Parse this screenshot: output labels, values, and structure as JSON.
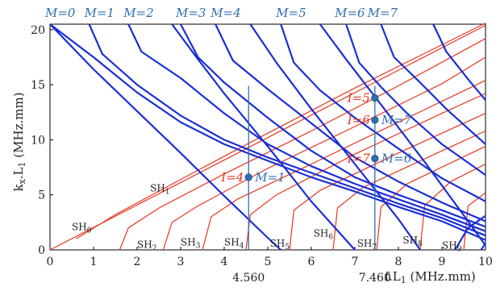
{
  "chart_data": {
    "type": "line",
    "xlabel": "f.L1 (MHz.mm)",
    "xlabel_main": "f.L",
    "xlabel_sub": "1",
    "xlabel_unit": " (MHz.mm)",
    "ylabel_k": "k",
    "ylabel_k_sub": "x",
    "ylabel_dot": ".L",
    "ylabel_L_sub": "1",
    "ylabel_unit": " (MHz.mm)",
    "xlim": [
      0,
      10
    ],
    "ylim": [
      0,
      20.5
    ],
    "xticks": [
      0,
      1,
      2,
      3,
      4,
      5,
      6,
      7,
      8,
      9,
      10
    ],
    "yticks": [
      0,
      5,
      10,
      15,
      20
    ],
    "extra_xtick_labels": [
      "4.560",
      "7.460"
    ],
    "vertical_lines": [
      4.56,
      7.46
    ],
    "colors": {
      "sh_modes": "#e8351f",
      "M_modes": "#1a2fd6",
      "markers": "#2f6fb0",
      "vlines": "#2f6fb0"
    },
    "M_labels": [
      "M=0",
      "M=1",
      "M=2",
      "M=3",
      "M=4",
      "M=5",
      "M=6",
      "M=7"
    ],
    "SH_labels": [
      {
        "name": "SH",
        "sub": "0"
      },
      {
        "name": "SH",
        "sub": "1"
      },
      {
        "name": "SH",
        "sub": "2"
      },
      {
        "name": "SH",
        "sub": "3"
      },
      {
        "name": "SH",
        "sub": "4"
      },
      {
        "name": "SH",
        "sub": "5"
      },
      {
        "name": "SH",
        "sub": "6"
      },
      {
        "name": "SH",
        "sub": "7"
      },
      {
        "name": "SH",
        "sub": "8"
      },
      {
        "name": "SH",
        "sub": "9"
      }
    ],
    "marked_points": [
      {
        "x": 4.56,
        "y": 6.6,
        "left_label": "I=4",
        "right_label": "M=1"
      },
      {
        "x": 7.46,
        "y": 13.8,
        "left_label": "I=5",
        "right_label": ""
      },
      {
        "x": 7.46,
        "y": 11.8,
        "left_label": "I=6",
        "right_label": "M=7"
      },
      {
        "x": 7.46,
        "y": 8.3,
        "left_label": "I=7",
        "right_label": "M=6"
      }
    ],
    "sh_series": [
      {
        "points": [
          [
            0,
            0
          ],
          [
            10,
            20.4
          ]
        ]
      },
      {
        "points": [
          [
            0.6,
            1
          ],
          [
            1.5,
            3.2
          ],
          [
            3,
            6.4
          ],
          [
            5,
            10.6
          ],
          [
            7,
            14.7
          ],
          [
            10,
            20.6
          ]
        ]
      },
      {
        "points": [
          [
            1.6,
            0
          ],
          [
            1.8,
            2
          ],
          [
            2.5,
            3.8
          ],
          [
            4,
            6.9
          ],
          [
            6,
            10.8
          ],
          [
            8,
            14.9
          ],
          [
            10,
            19.2
          ]
        ]
      },
      {
        "points": [
          [
            2.6,
            0
          ],
          [
            2.8,
            2.5
          ],
          [
            3.4,
            4
          ],
          [
            5,
            7.4
          ],
          [
            7,
            11.2
          ],
          [
            9,
            15.1
          ],
          [
            10,
            17.5
          ]
        ]
      },
      {
        "points": [
          [
            3.5,
            0
          ],
          [
            3.7,
            3
          ],
          [
            4.3,
            4.6
          ],
          [
            6,
            7.8
          ],
          [
            8,
            11.6
          ],
          [
            10,
            15.4
          ]
        ]
      },
      {
        "points": [
          [
            4.5,
            0
          ],
          [
            4.6,
            3.2
          ],
          [
            5.2,
            5
          ],
          [
            7,
            8.7
          ],
          [
            9,
            12.4
          ],
          [
            10,
            14.2
          ]
        ]
      },
      {
        "points": [
          [
            5.5,
            0
          ],
          [
            5.6,
            3.6
          ],
          [
            6.2,
            5.4
          ],
          [
            8,
            8.8
          ],
          [
            10,
            12.4
          ]
        ]
      },
      {
        "points": [
          [
            6.5,
            0
          ],
          [
            6.6,
            3.8
          ],
          [
            7.2,
            5.7
          ],
          [
            9,
            9
          ],
          [
            10,
            10.8
          ]
        ]
      },
      {
        "points": [
          [
            7.5,
            0
          ],
          [
            7.6,
            3.9
          ],
          [
            8.2,
            6
          ],
          [
            10,
            9.4
          ]
        ]
      },
      {
        "points": [
          [
            8.5,
            0
          ],
          [
            8.6,
            4
          ],
          [
            9.2,
            6.2
          ],
          [
            10,
            7.8
          ]
        ]
      },
      {
        "points": [
          [
            9.5,
            0
          ],
          [
            9.6,
            4
          ],
          [
            10,
            5.2
          ]
        ]
      }
    ],
    "m_series": [
      {
        "points": [
          [
            0,
            20.5
          ],
          [
            1,
            17.5
          ],
          [
            2,
            14.3
          ],
          [
            3,
            11.6
          ],
          [
            4,
            9.6
          ],
          [
            5,
            8.1
          ],
          [
            6,
            6.6
          ],
          [
            7,
            5.3
          ],
          [
            8,
            3.9
          ],
          [
            9,
            2.6
          ],
          [
            10,
            0.9
          ]
        ]
      },
      {
        "points": [
          [
            0.9,
            20.5
          ],
          [
            1.2,
            17.8
          ],
          [
            2,
            15
          ],
          [
            3,
            12.2
          ],
          [
            4,
            10
          ],
          [
            5,
            8.4
          ],
          [
            6,
            7
          ],
          [
            7,
            5.6
          ],
          [
            8,
            4.2
          ],
          [
            9,
            2.9
          ],
          [
            10,
            1.3
          ]
        ]
      },
      {
        "points": [
          [
            1.8,
            20.5
          ],
          [
            2.1,
            18
          ],
          [
            3,
            15.6
          ],
          [
            4,
            12.4
          ],
          [
            5,
            9.6
          ],
          [
            6,
            7.6
          ],
          [
            7,
            6
          ],
          [
            8,
            4.6
          ],
          [
            9,
            3.2
          ],
          [
            10,
            1.7
          ]
        ]
      },
      {
        "points": [
          [
            3,
            20.5
          ],
          [
            3.4,
            17.5
          ],
          [
            4,
            15.2
          ],
          [
            5,
            12
          ],
          [
            6,
            9
          ],
          [
            7,
            6.6
          ],
          [
            8,
            5
          ],
          [
            9,
            3.6
          ],
          [
            10,
            2.1
          ]
        ]
      },
      {
        "points": [
          [
            3.8,
            20.5
          ],
          [
            4.2,
            17.2
          ],
          [
            5,
            14.6
          ],
          [
            6,
            11.5
          ],
          [
            7,
            8.4
          ],
          [
            8,
            6.2
          ],
          [
            9,
            4.3
          ],
          [
            10,
            2.6
          ]
        ]
      },
      {
        "points": [
          [
            5.3,
            20.5
          ],
          [
            5.6,
            17
          ],
          [
            6.2,
            14.5
          ],
          [
            7,
            12
          ],
          [
            8,
            9.2
          ],
          [
            9,
            6.5
          ],
          [
            10,
            4.4
          ]
        ]
      },
      {
        "points": [
          [
            6.8,
            20.5
          ],
          [
            7.1,
            17
          ],
          [
            7.6,
            14.8
          ],
          [
            8.2,
            12.4
          ],
          [
            9,
            9.6
          ],
          [
            10,
            6.8
          ]
        ]
      },
      {
        "points": [
          [
            7.6,
            20.5
          ],
          [
            7.9,
            17.5
          ],
          [
            8.5,
            15.2
          ],
          [
            9.1,
            12.8
          ],
          [
            10,
            9.6
          ]
        ]
      },
      {
        "points": [
          [
            8.8,
            20.5
          ],
          [
            9.1,
            18
          ],
          [
            9.6,
            15.5
          ],
          [
            10,
            13.6
          ]
        ]
      },
      {
        "points": [
          [
            0,
            20.5
          ],
          [
            1,
            16.4
          ],
          [
            2,
            12.6
          ],
          [
            3,
            8.8
          ],
          [
            4,
            4.9
          ],
          [
            5,
            1.1
          ],
          [
            5.3,
            0
          ]
        ]
      },
      {
        "points": [
          [
            2.8,
            20.5
          ],
          [
            3.4,
            17.3
          ],
          [
            4,
            14.2
          ],
          [
            5,
            9.4
          ],
          [
            6,
            4.4
          ],
          [
            7,
            0
          ]
        ]
      },
      {
        "points": [
          [
            4.6,
            20.5
          ],
          [
            5.2,
            17
          ],
          [
            6,
            12.8
          ],
          [
            7,
            7.8
          ],
          [
            8,
            2.8
          ],
          [
            8.5,
            0
          ]
        ]
      },
      {
        "points": [
          [
            6.2,
            20.5
          ],
          [
            6.8,
            17.3
          ],
          [
            7.6,
            13.2
          ],
          [
            8.6,
            8
          ],
          [
            9.6,
            2.6
          ],
          [
            10,
            0.4
          ]
        ]
      },
      {
        "points": [
          [
            9.3,
            0
          ],
          [
            9.6,
            2
          ],
          [
            10,
            3.1
          ]
        ]
      },
      {
        "points": [
          [
            9.9,
            0
          ],
          [
            10,
            0.6
          ]
        ]
      }
    ]
  }
}
